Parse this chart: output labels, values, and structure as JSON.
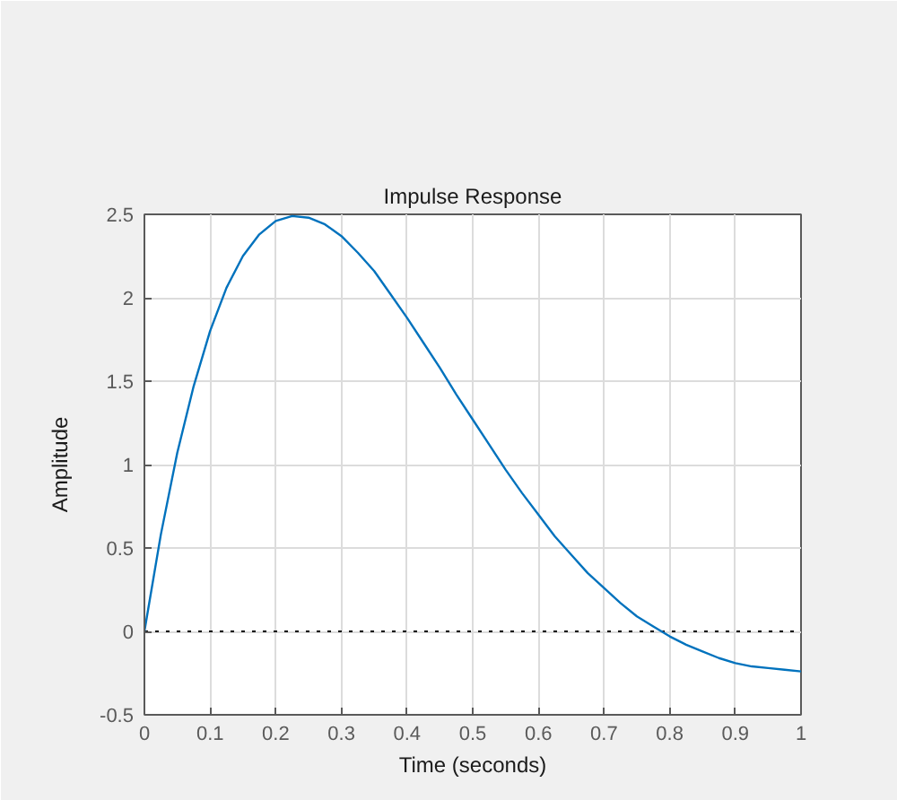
{
  "chart_data": {
    "type": "line",
    "title": "Impulse Response",
    "xlabel": "Time (seconds)",
    "ylabel": "Amplitude",
    "series": [
      {
        "color": "#0072bd",
        "x": [
          0,
          0.025,
          0.05,
          0.075,
          0.1,
          0.125,
          0.15,
          0.175,
          0.2,
          0.225,
          0.25,
          0.275,
          0.3,
          0.325,
          0.35,
          0.375,
          0.4,
          0.425,
          0.45,
          0.475,
          0.5,
          0.525,
          0.55,
          0.575,
          0.6,
          0.625,
          0.65,
          0.675,
          0.7,
          0.725,
          0.75,
          0.775,
          0.8,
          0.825,
          0.85,
          0.875,
          0.9,
          0.925,
          0.95,
          0.975,
          1.0
        ],
        "values": [
          0,
          0.58,
          1.07,
          1.47,
          1.8,
          2.06,
          2.25,
          2.38,
          2.46,
          2.49,
          2.48,
          2.44,
          2.37,
          2.27,
          2.16,
          2.02,
          1.88,
          1.73,
          1.58,
          1.42,
          1.27,
          1.12,
          0.97,
          0.83,
          0.7,
          0.57,
          0.46,
          0.35,
          0.26,
          0.17,
          0.09,
          0.03,
          -0.03,
          -0.08,
          -0.12,
          -0.16,
          -0.19,
          -0.21,
          -0.22,
          -0.23,
          -0.24
        ]
      }
    ],
    "xlim": [
      0,
      1
    ],
    "ylim": [
      -0.5,
      2.5
    ],
    "xticks": [
      0,
      0.1,
      0.2,
      0.3,
      0.4,
      0.5,
      0.6,
      0.7,
      0.8,
      0.9,
      1
    ],
    "yticks": [
      -0.5,
      0,
      0.5,
      1,
      1.5,
      2,
      2.5
    ],
    "ref_lines": [
      {
        "axis": "y",
        "value": 0,
        "color": "#000000",
        "line_style": "dotted"
      }
    ],
    "grid": true,
    "line_style": "solid"
  }
}
